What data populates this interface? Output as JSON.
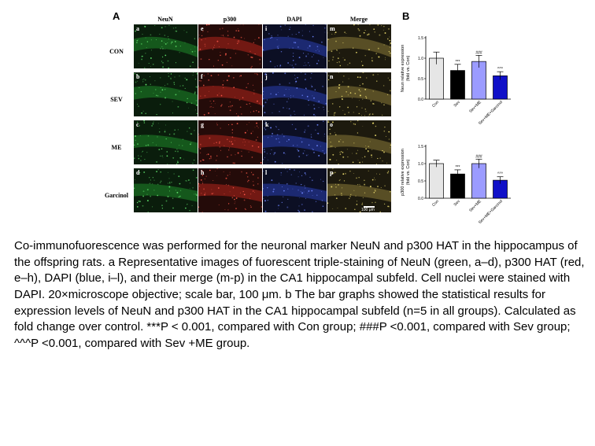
{
  "figure": {
    "panel_a_letter": "A",
    "panel_b_letter": "B",
    "columns": [
      "NeuN",
      "p300",
      "DAPI",
      "Merge"
    ],
    "rows": [
      "CON",
      "SEV",
      "ME",
      "Garcinol"
    ],
    "tile_letters": [
      [
        "a",
        "e",
        "i",
        "m"
      ],
      [
        "b",
        "f",
        "j",
        "n"
      ],
      [
        "c",
        "g",
        "k",
        "o"
      ],
      [
        "d",
        "h",
        "l",
        "p"
      ]
    ],
    "scale_bar_label": "100 μm",
    "stain_colors": {
      "green": "#1f8a2a",
      "red": "#b3261e",
      "blue": "#2a3fb0",
      "merge": "#8a7a3a"
    }
  },
  "chart_data": [
    {
      "type": "bar",
      "categories": [
        "Con",
        "Sev",
        "Sev+ME",
        "Sev+ME+Garcinol"
      ],
      "values": [
        1.0,
        0.7,
        0.92,
        0.57
      ],
      "errors": [
        0.15,
        0.15,
        0.15,
        0.1
      ],
      "annotations": [
        "",
        "***",
        "###",
        "^^^"
      ],
      "ylabel": "Neun relative expression\n(fold vs. Con)",
      "ylim": [
        0,
        1.5
      ],
      "yticks": [
        "0.0",
        "0.5",
        "1.0",
        "1.5"
      ],
      "colors": [
        "#e6e6e6",
        "#000000",
        "#9b9bff",
        "#1010c8"
      ]
    },
    {
      "type": "bar",
      "categories": [
        "Con",
        "Sev",
        "Sev+ME",
        "Sev+ME+Garcinol"
      ],
      "values": [
        1.0,
        0.7,
        1.0,
        0.52
      ],
      "errors": [
        0.1,
        0.12,
        0.13,
        0.1
      ],
      "annotations": [
        "",
        "***",
        "###",
        "^^^"
      ],
      "ylabel": "p300 relative expression\n(fold vs. Con)",
      "ylim": [
        0,
        1.5
      ],
      "yticks": [
        "0.0",
        "0.5",
        "1.0",
        "1.5"
      ],
      "colors": [
        "#e6e6e6",
        "#000000",
        "#9b9bff",
        "#1010c8"
      ]
    }
  ],
  "caption": "Co-immunofuorescence was performed for the neuronal marker NeuN and p300 HAT in the hippocampus of the offspring rats. a Representative images of fuorescent triple-staining of NeuN (green, a–d), p300 HAT (red, e–h), DAPI (blue, i–l), and their merge (m-p) in the CA1 hippocampal subfeld. Cell nuclei were stained with DAPI. 20×microscope objective; scale bar, 100 μm. b The bar graphs showed the statistical results for expression levels of NeuN and p300 HAT in the CA1 hippocampal subfeld (n=5 in all groups). Calculated as fold change over control. ***P < 0.001, compared with Con group; ###P <0.001, compared with Sev group; ^^^P <0.001, compared with Sev +ME group."
}
